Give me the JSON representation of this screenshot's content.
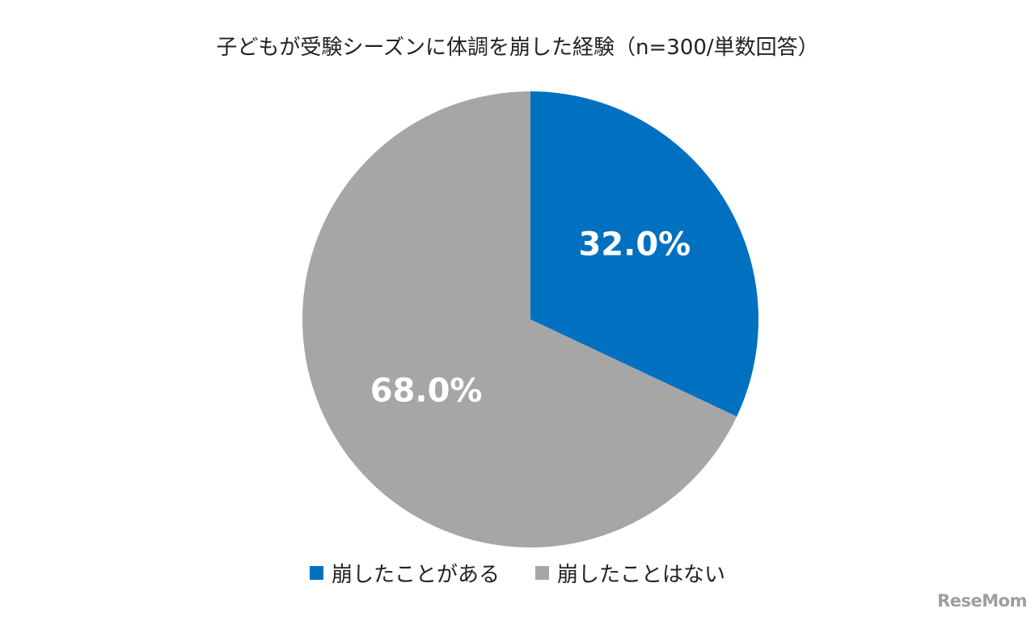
{
  "chart_data": {
    "type": "pie",
    "title": "子どもが受験シーズンに体調を崩した経験（n=300/単数回答）",
    "categories": [
      "崩したことがある",
      "崩したことはない"
    ],
    "values": [
      32.0,
      68.0
    ],
    "data_labels": [
      "32.0%",
      "68.0%"
    ],
    "colors": [
      "#0070c0",
      "#a6a6a6"
    ],
    "start_angle": "12 o'clock",
    "direction": "clockwise",
    "legend_position": "bottom"
  },
  "watermark": "ReseMom"
}
